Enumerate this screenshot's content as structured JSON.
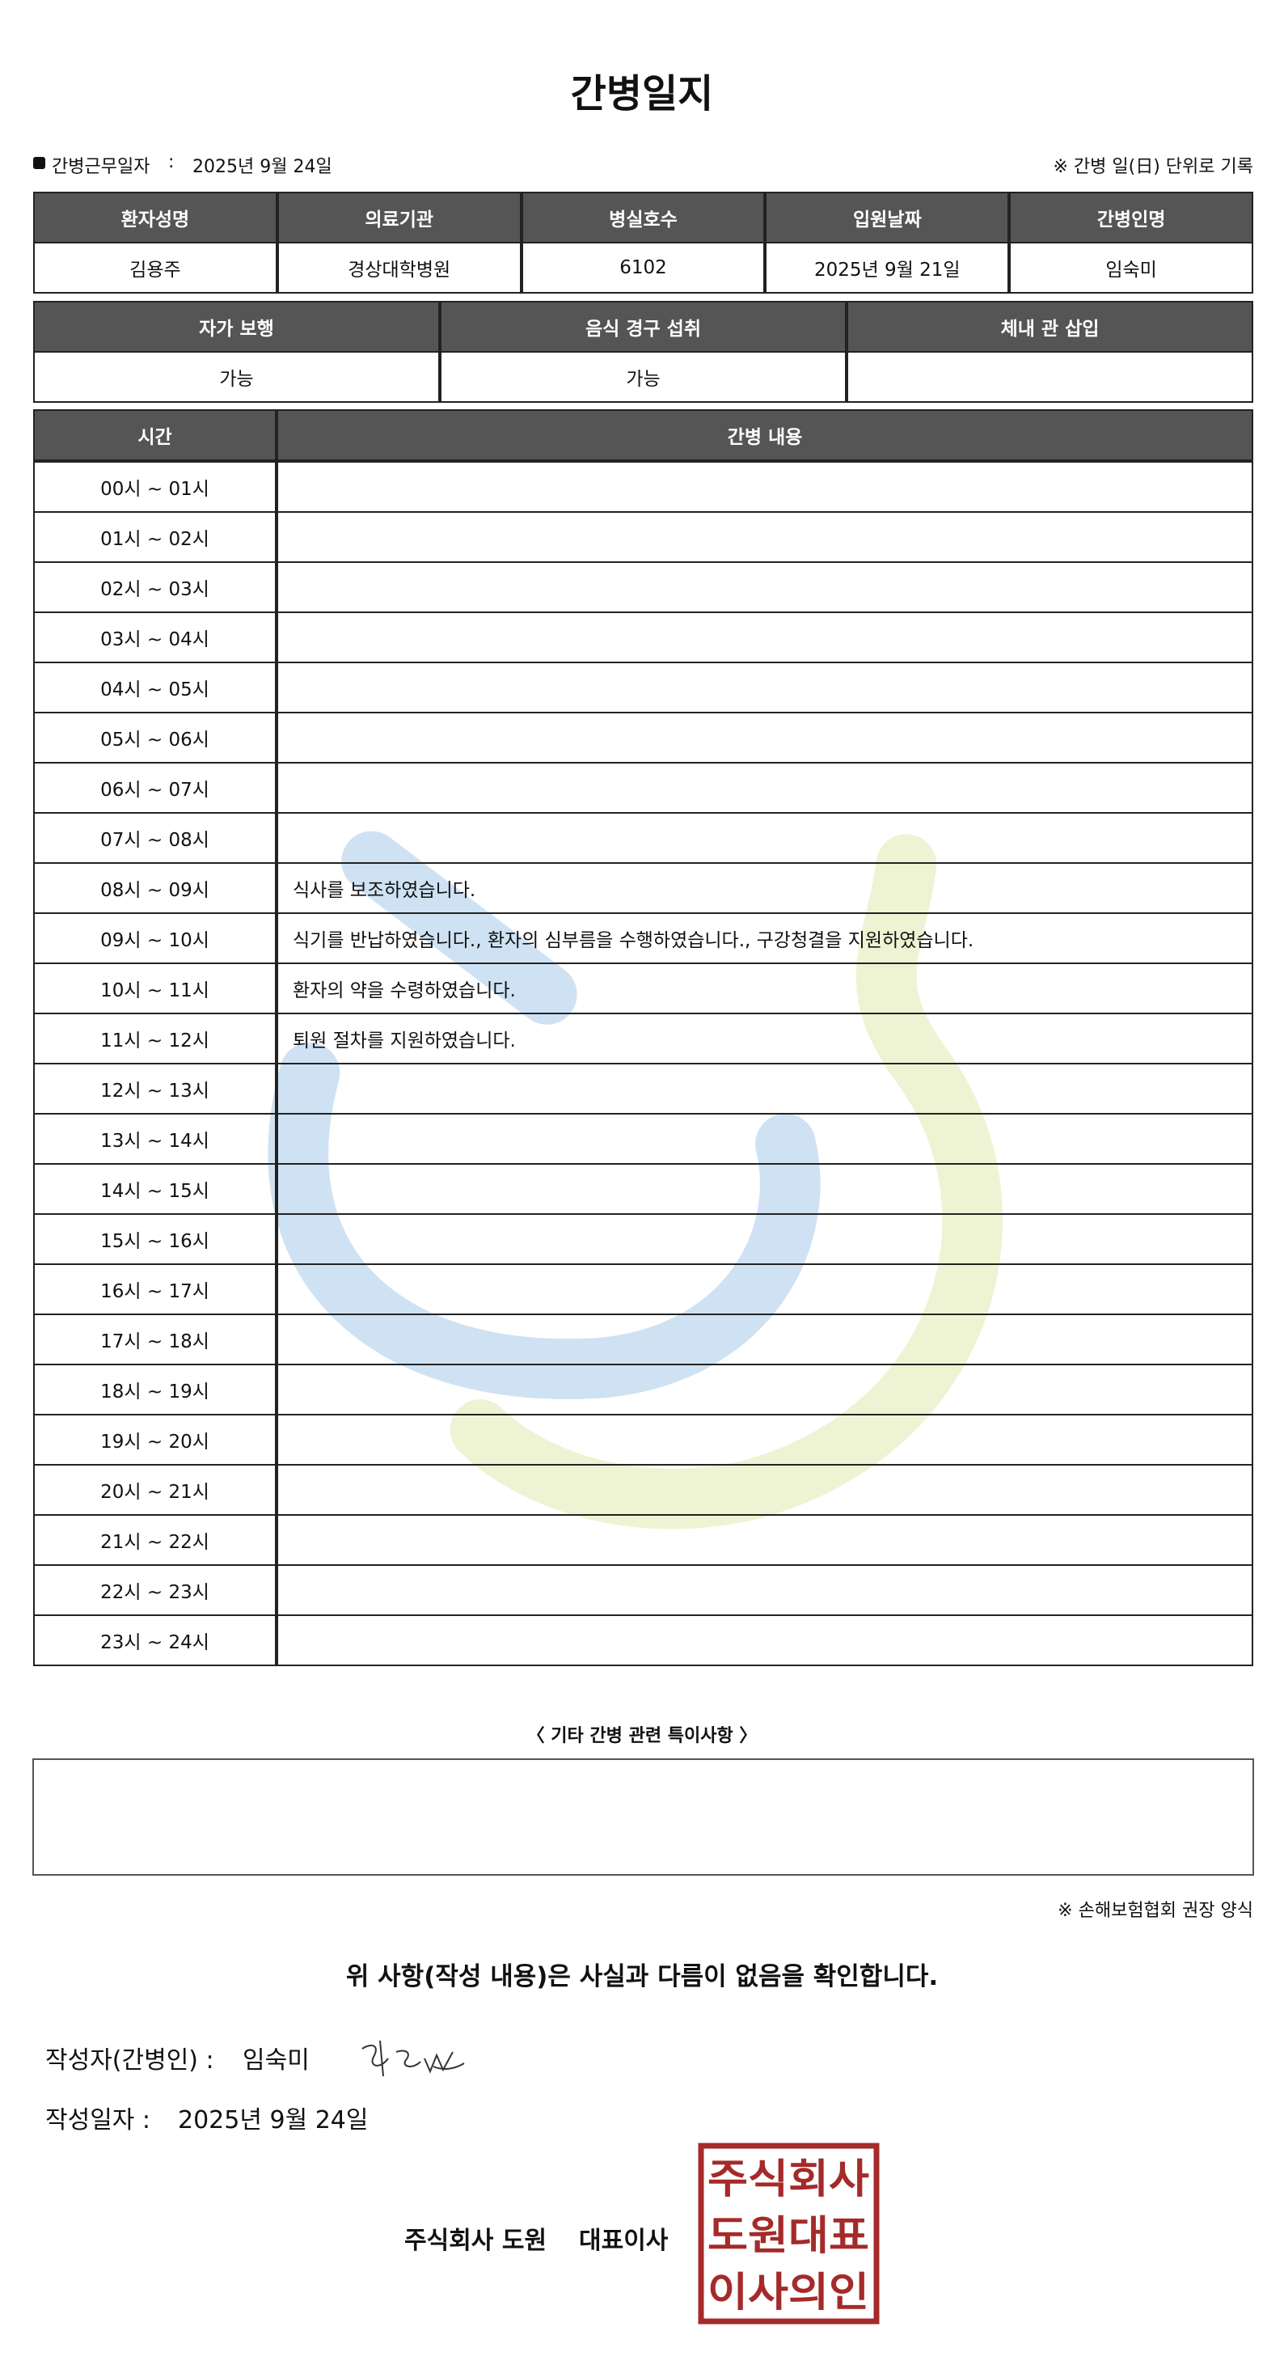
{
  "header": {
    "title": "간병일지",
    "work_date_label": "간병근무일자",
    "work_date_sep": ":",
    "work_date": "2025년 9월 24일",
    "note": "※ 간병 일(日) 단위로 기록"
  },
  "patient_table": {
    "headers": [
      "환자성명",
      "의료기관",
      "병실호수",
      "입원날짜",
      "간병인명"
    ],
    "rows": [
      [
        "김용주",
        "경상대학병원",
        "6102",
        "2025년 9월 21일",
        "임숙미"
      ]
    ]
  },
  "status_table": {
    "headers": [
      "자가 보행",
      "음식 경구 섭취",
      "체내 관 삽입"
    ],
    "rows": [
      [
        "가능",
        "가능"
      ]
    ]
  },
  "log_table": {
    "headers": [
      "시간",
      "간병 내용"
    ],
    "rows": [
      [
        "00시 ~ 01시"
      ],
      [
        "01시 ~ 02시"
      ],
      [
        "02시 ~ 03시"
      ],
      [
        "03시 ~ 04시"
      ],
      [
        "04시 ~ 05시"
      ],
      [
        "05시 ~ 06시"
      ],
      [
        "06시 ~ 07시"
      ],
      [
        "07시 ~ 08시"
      ],
      [
        "08시 ~ 09시",
        "식사를 보조하였습니다."
      ],
      [
        "09시 ~ 10시",
        "식기를 반납하였습니다., 환자의 심부름을 수행하였습니다., 구강청결을 지원하였습니다."
      ],
      [
        "10시 ~ 11시",
        "환자의 약을 수령하였습니다."
      ],
      [
        "11시 ~ 12시",
        "퇴원 절차를 지원하였습니다."
      ],
      [
        "12시 ~ 13시"
      ],
      [
        "13시 ~ 14시"
      ],
      [
        "14시 ~ 15시"
      ],
      [
        "15시 ~ 16시"
      ],
      [
        "16시 ~ 17시"
      ],
      [
        "17시 ~ 18시"
      ],
      [
        "18시 ~ 19시"
      ],
      [
        "19시 ~ 20시"
      ],
      [
        "20시 ~ 21시"
      ],
      [
        "21시 ~ 22시"
      ],
      [
        "22시 ~ 23시"
      ],
      [
        "23시 ~ 24시"
      ]
    ]
  },
  "remarks": {
    "title": "〈 기타 간병 관련 특이사항 〉"
  },
  "footer": {
    "form_note": "※ 손해보험협회 권장 양식",
    "confirmation": "위 사항(작성 내용)은 사실과 다름이 없음을 확인합니다.",
    "writer_label": "작성자(간병인) :",
    "writer": "임숙미",
    "date_label": "작성일자 :",
    "date": "2025년 9월 24일",
    "company": "주식회사 도원",
    "position": "대표이사",
    "seal": [
      "주식회사",
      "도원대표",
      "이사의인"
    ]
  }
}
